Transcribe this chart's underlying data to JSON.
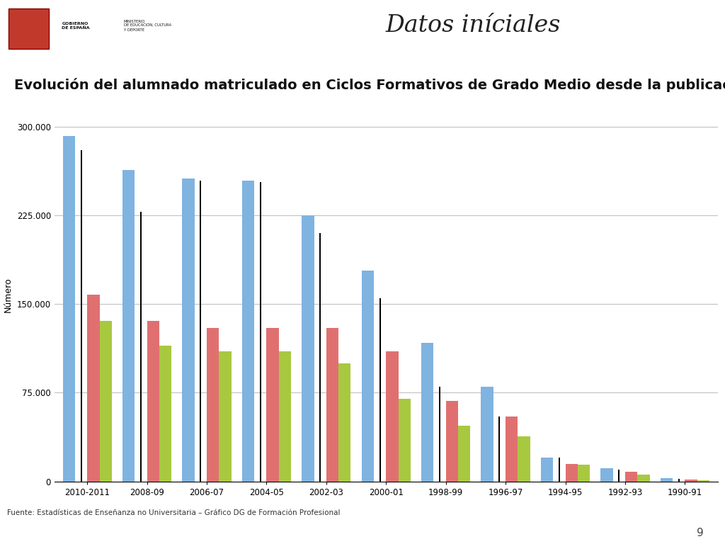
{
  "title": "Evolución del alumnado matriculado en Ciclos Formativos de Grado Medio desde la publicación d",
  "ylabel": "Número",
  "page_title": "Datos iníciales",
  "footer": "Fuente: Estadísticas de Enseñanza no Universitaria – Gráfico DG de Formación Profesional",
  "page_number": "9",
  "categories": [
    "2010-2011",
    "2008-09",
    "2006-07",
    "2004-05",
    "2002-03",
    "2000-01",
    "1998-99",
    "1996-97",
    "1994-95",
    "1992-93",
    "1990-91"
  ],
  "blue_values": [
    292000,
    263000,
    256000,
    254000,
    225000,
    178000,
    117000,
    80000,
    20000,
    11000,
    3000
  ],
  "red_values": [
    158000,
    136000,
    130000,
    130000,
    130000,
    110000,
    68000,
    55000,
    15000,
    8000,
    1500
  ],
  "green_values": [
    136000,
    115000,
    110000,
    110000,
    100000,
    70000,
    47000,
    38000,
    14000,
    6000,
    1000
  ],
  "black_values": [
    280000,
    228000,
    254000,
    253000,
    210000,
    155000,
    80000,
    55000,
    20000,
    10000,
    2000
  ],
  "blue2_values": [
    280000,
    228000,
    254000,
    253000,
    210000,
    155000,
    80000,
    55000,
    17000,
    10000,
    2000
  ],
  "yticks": [
    0,
    75000,
    150000,
    225000,
    300000
  ],
  "ytick_labels": [
    "0",
    "75.000",
    "150.000",
    "225.000",
    "300.000"
  ],
  "ylim": [
    0,
    315000
  ],
  "bar_color_blue": "#7FB3E0",
  "bar_color_red": "#E07070",
  "bar_color_green": "#A8C840",
  "bar_color_black": "#000000",
  "grid_color": "#BBBBBB",
  "title_fontsize": 14,
  "ylabel_fontsize": 9,
  "tick_fontsize": 8.5,
  "footer_fontsize": 7.5
}
